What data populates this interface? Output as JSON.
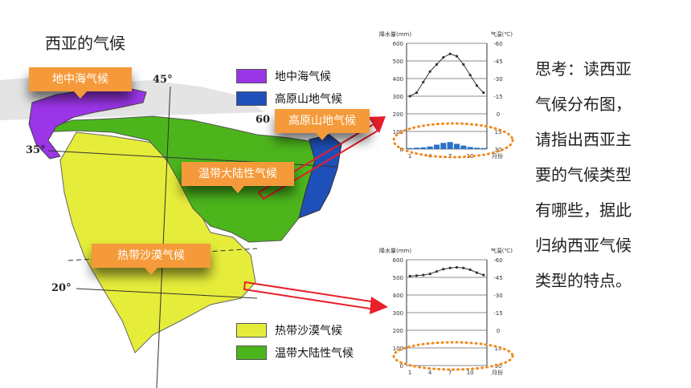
{
  "title": "西亚的气候",
  "map": {
    "callouts": {
      "mediterranean": "地中海气候",
      "highland": "高原山地气候",
      "continental": "温带大陆性气候",
      "desert": "热带沙漠气候"
    },
    "coords": {
      "lon45": "45°",
      "lon60": "60",
      "lat35": "35°",
      "lat20": "20°"
    },
    "legend_top": [
      {
        "label": "地中海气候",
        "color": "#9b35e8"
      },
      {
        "label": "高原山地气候",
        "color": "#1f4fb8"
      }
    ],
    "legend_bottom": [
      {
        "label": "热带沙漠气候",
        "color": "#e6ec3a"
      },
      {
        "label": "温带大陆性气候",
        "color": "#4cb51c"
      }
    ],
    "colors": {
      "callout": "#f59a3a",
      "arrow": "#e8202a",
      "dotted_ellipse": "#f08a1e"
    }
  },
  "question": {
    "lines": [
      "思考：读西亚",
      "气候分布图，",
      "请指出西亚主",
      "要的气候类型",
      "有哪些，据此",
      "归纳西亚气候",
      "类型的特点。"
    ]
  },
  "chart_data": [
    {
      "type": "bar+line",
      "left_axis_label": "降水量(mm)",
      "right_axis_label": "气温(℃)",
      "x_unit_label": "月份",
      "months": [
        1,
        2,
        3,
        4,
        5,
        6,
        7,
        8,
        9,
        10,
        11,
        12
      ],
      "x_tick_labels": [
        "1",
        "4",
        "7",
        "10"
      ],
      "precip_ticks": [
        0,
        100,
        200,
        300,
        400,
        500,
        600
      ],
      "temp_ticks": [
        30,
        15,
        0,
        -15,
        -30,
        -45,
        -60
      ],
      "precip_range": [
        0,
        600
      ],
      "temp_range": [
        -60,
        30
      ],
      "precipitation": [
        6,
        8,
        10,
        15,
        25,
        35,
        40,
        30,
        20,
        12,
        8,
        6
      ],
      "temperature": [
        -15,
        -12,
        -3,
        6,
        12,
        18,
        21,
        19,
        12,
        3,
        -6,
        -12
      ]
    },
    {
      "type": "bar+line",
      "left_axis_label": "降水量(mm)",
      "right_axis_label": "气温(℃)",
      "x_unit_label": "月份",
      "months": [
        1,
        2,
        3,
        4,
        5,
        6,
        7,
        8,
        9,
        10,
        11,
        12
      ],
      "x_tick_labels": [
        "1",
        "4",
        "7",
        "10"
      ],
      "precip_ticks": [
        0,
        100,
        200,
        300,
        400,
        500,
        600
      ],
      "temp_ticks": [
        30,
        15,
        0,
        -15,
        -30,
        -45,
        -60
      ],
      "precip_range": [
        0,
        600
      ],
      "temp_range": [
        -60,
        30
      ],
      "precipitation": [
        1,
        1,
        1,
        0,
        0,
        0,
        0,
        0,
        0,
        0,
        1,
        1
      ],
      "temperature": [
        16,
        16.5,
        17,
        18,
        20,
        22,
        23,
        23.5,
        23,
        21.5,
        19,
        17
      ]
    }
  ]
}
